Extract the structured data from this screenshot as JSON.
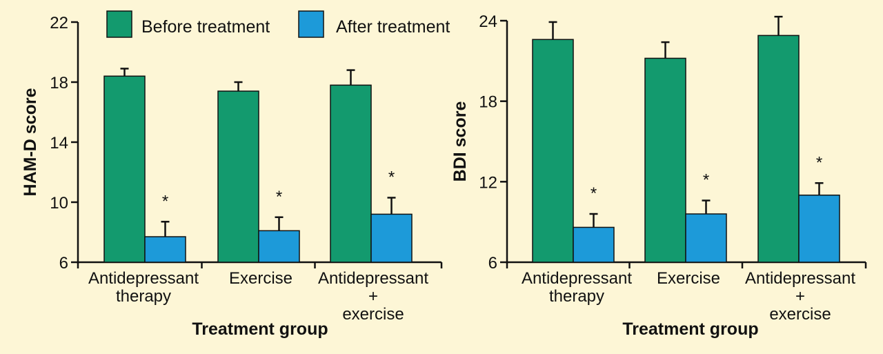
{
  "legend": {
    "before_label": "Before treatment",
    "after_label": "After treatment"
  },
  "colors": {
    "before": "#139a6e",
    "after": "#1d9ad9",
    "background": "#fdf6d6"
  },
  "chart_data": [
    {
      "type": "bar",
      "ylabel": "HAM-D score",
      "xlabel": "Treatment group",
      "ylim": [
        6,
        22
      ],
      "yticks": [
        6,
        10,
        14,
        18,
        22
      ],
      "categories": [
        [
          "Antidepressant",
          "therapy"
        ],
        [
          "Exercise"
        ],
        [
          "Antidepressant",
          "+",
          "exercise"
        ]
      ],
      "series": [
        {
          "name": "Before treatment",
          "values": [
            18.4,
            17.4,
            17.8
          ],
          "errors": [
            0.5,
            0.6,
            1.0
          ]
        },
        {
          "name": "After treatment",
          "values": [
            7.7,
            8.1,
            9.2
          ],
          "errors": [
            1.0,
            0.9,
            1.1
          ]
        }
      ],
      "annotations": [
        "*",
        "*",
        "*"
      ]
    },
    {
      "type": "bar",
      "ylabel": "BDI score",
      "xlabel": "Treatment group",
      "ylim": [
        6,
        24
      ],
      "yticks": [
        6,
        12,
        18,
        24
      ],
      "categories": [
        [
          "Antidepressant",
          "therapy"
        ],
        [
          "Exercise"
        ],
        [
          "Antidepressant",
          "+",
          "exercise"
        ]
      ],
      "series": [
        {
          "name": "Before treatment",
          "values": [
            22.6,
            21.2,
            22.9
          ],
          "errors": [
            1.3,
            1.2,
            1.4
          ]
        },
        {
          "name": "After treatment",
          "values": [
            8.6,
            9.6,
            11.0
          ],
          "errors": [
            1.0,
            1.0,
            0.9
          ]
        }
      ],
      "annotations": [
        "*",
        "*",
        "*"
      ]
    }
  ]
}
